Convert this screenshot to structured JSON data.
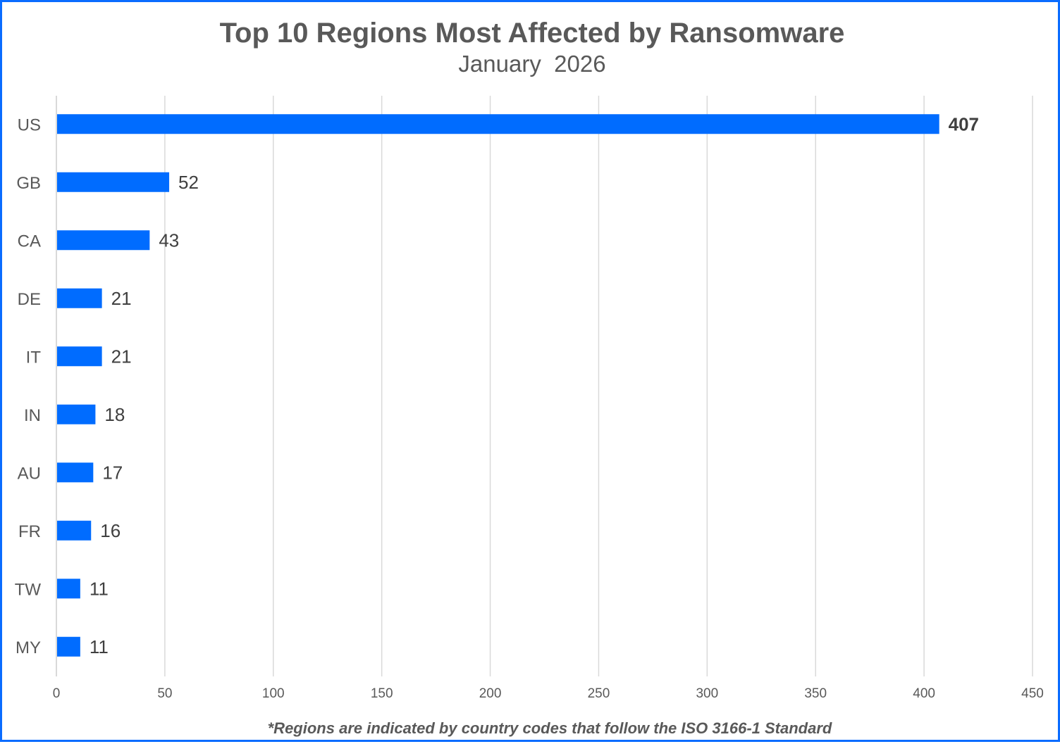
{
  "chart_data": {
    "type": "bar",
    "orientation": "horizontal",
    "title": "Top 10 Regions Most Affected by Ransomware",
    "subtitle": "January  2026",
    "categories": [
      "US",
      "GB",
      "CA",
      "DE",
      "IT",
      "IN",
      "AU",
      "FR",
      "TW",
      "MY"
    ],
    "values": [
      407,
      52,
      43,
      21,
      21,
      18,
      17,
      16,
      11,
      11
    ],
    "xlim": [
      0,
      450
    ],
    "xticks": [
      0,
      50,
      100,
      150,
      200,
      250,
      300,
      350,
      400,
      450
    ],
    "grid": true,
    "footnote": "*Regions are indicated by country codes that follow the ISO 3166-1 Standard",
    "colors": {
      "bar": "#006cff",
      "border": "#0a6cff",
      "grid": "#d9d9d9",
      "text": "#595959"
    }
  }
}
